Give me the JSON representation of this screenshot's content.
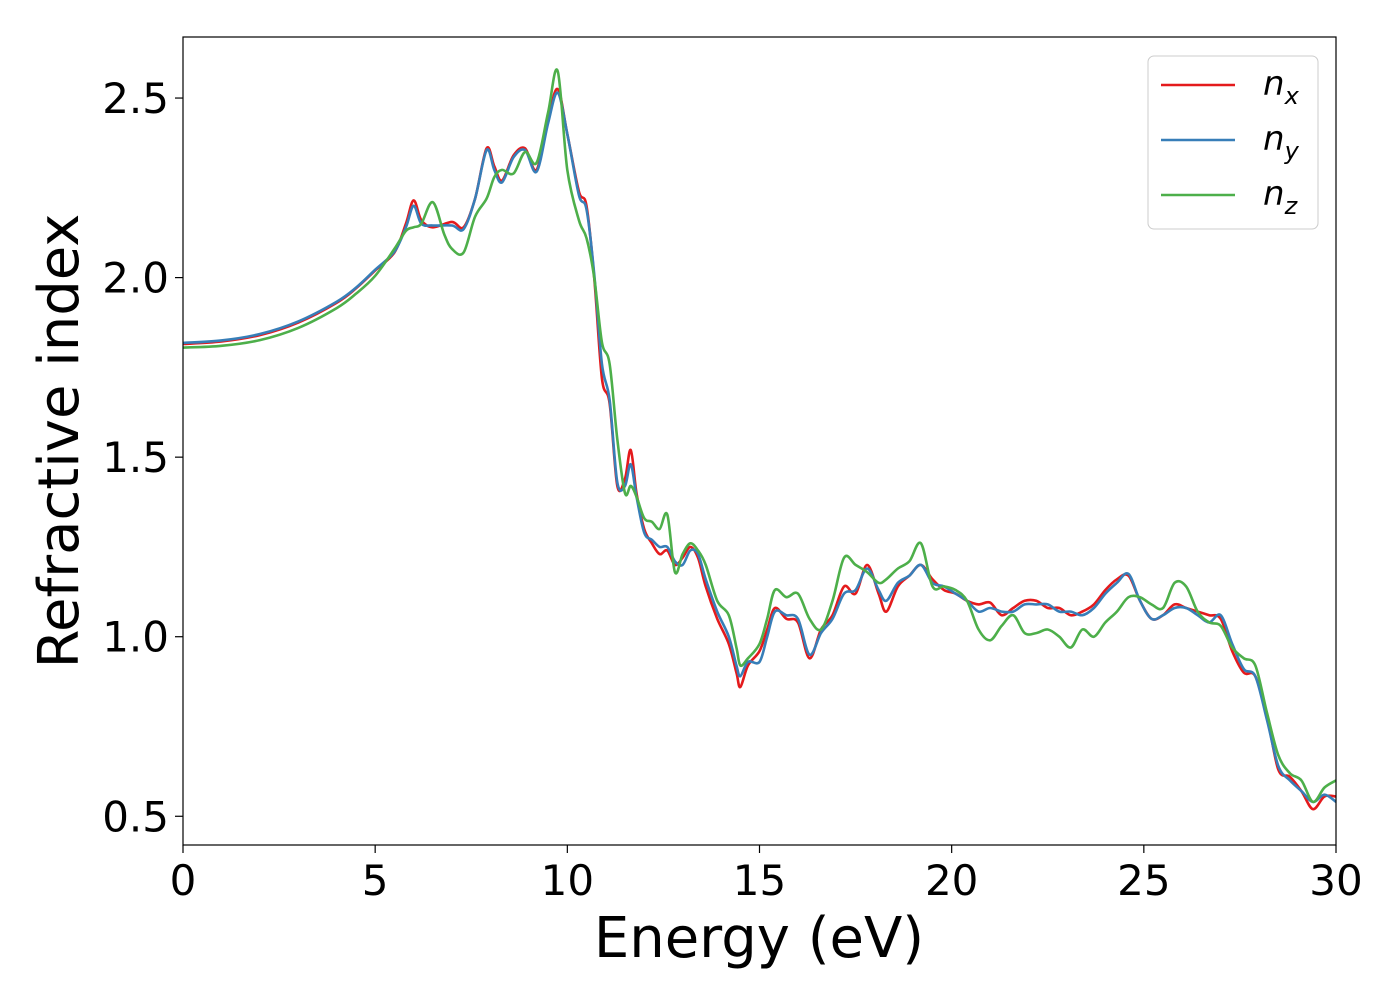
{
  "chart_data": {
    "type": "line",
    "xlabel": "Energy (eV)",
    "ylabel": "Refractive index",
    "xlim": [
      0,
      30
    ],
    "ylim": [
      0.42,
      2.67
    ],
    "xticks": [
      "0",
      "5",
      "10",
      "15",
      "20",
      "25",
      "30"
    ],
    "yticks": [
      "0.5",
      "1.0",
      "1.5",
      "2.0",
      "2.5"
    ],
    "grid": false,
    "legend_position": "top-right",
    "series": [
      {
        "name": "n_x",
        "legend_base": "n",
        "legend_sub": "x",
        "color": "#e41a1c",
        "points": [
          [
            0,
            1.815
          ],
          [
            1,
            1.822
          ],
          [
            2,
            1.84
          ],
          [
            3,
            1.875
          ],
          [
            4,
            1.93
          ],
          [
            4.5,
            1.97
          ],
          [
            5,
            2.02
          ],
          [
            5.5,
            2.07
          ],
          [
            5.8,
            2.15
          ],
          [
            6,
            2.215
          ],
          [
            6.2,
            2.16
          ],
          [
            6.5,
            2.14
          ],
          [
            7,
            2.155
          ],
          [
            7.3,
            2.14
          ],
          [
            7.6,
            2.22
          ],
          [
            7.9,
            2.36
          ],
          [
            8.1,
            2.31
          ],
          [
            8.3,
            2.27
          ],
          [
            8.6,
            2.34
          ],
          [
            8.9,
            2.36
          ],
          [
            9.2,
            2.3
          ],
          [
            9.5,
            2.44
          ],
          [
            9.75,
            2.525
          ],
          [
            10,
            2.4
          ],
          [
            10.3,
            2.24
          ],
          [
            10.5,
            2.2
          ],
          [
            10.7,
            2.0
          ],
          [
            10.9,
            1.72
          ],
          [
            11.1,
            1.65
          ],
          [
            11.3,
            1.42
          ],
          [
            11.5,
            1.44
          ],
          [
            11.65,
            1.52
          ],
          [
            11.8,
            1.4
          ],
          [
            12,
            1.3
          ],
          [
            12.2,
            1.26
          ],
          [
            12.4,
            1.23
          ],
          [
            12.6,
            1.24
          ],
          [
            12.8,
            1.2
          ],
          [
            13,
            1.22
          ],
          [
            13.2,
            1.25
          ],
          [
            13.4,
            1.22
          ],
          [
            13.6,
            1.14
          ],
          [
            13.9,
            1.05
          ],
          [
            14.2,
            0.98
          ],
          [
            14.4,
            0.9
          ],
          [
            14.5,
            0.86
          ],
          [
            14.7,
            0.92
          ],
          [
            15,
            0.96
          ],
          [
            15.2,
            1.02
          ],
          [
            15.4,
            1.08
          ],
          [
            15.7,
            1.05
          ],
          [
            16,
            1.04
          ],
          [
            16.3,
            0.94
          ],
          [
            16.6,
            1.02
          ],
          [
            16.9,
            1.06
          ],
          [
            17.2,
            1.14
          ],
          [
            17.5,
            1.12
          ],
          [
            17.8,
            1.2
          ],
          [
            18.1,
            1.12
          ],
          [
            18.3,
            1.07
          ],
          [
            18.6,
            1.14
          ],
          [
            18.9,
            1.17
          ],
          [
            19.2,
            1.2
          ],
          [
            19.5,
            1.16
          ],
          [
            19.8,
            1.13
          ],
          [
            20.1,
            1.12
          ],
          [
            20.4,
            1.1
          ],
          [
            20.7,
            1.09
          ],
          [
            21,
            1.095
          ],
          [
            21.3,
            1.06
          ],
          [
            21.6,
            1.08
          ],
          [
            21.9,
            1.1
          ],
          [
            22.2,
            1.1
          ],
          [
            22.5,
            1.08
          ],
          [
            22.8,
            1.08
          ],
          [
            23.1,
            1.06
          ],
          [
            23.4,
            1.07
          ],
          [
            23.7,
            1.09
          ],
          [
            24,
            1.13
          ],
          [
            24.3,
            1.16
          ],
          [
            24.6,
            1.17
          ],
          [
            24.9,
            1.1
          ],
          [
            25.2,
            1.05
          ],
          [
            25.5,
            1.06
          ],
          [
            25.8,
            1.09
          ],
          [
            26.1,
            1.08
          ],
          [
            26.4,
            1.07
          ],
          [
            26.7,
            1.06
          ],
          [
            27,
            1.05
          ],
          [
            27.3,
            0.96
          ],
          [
            27.6,
            0.9
          ],
          [
            27.9,
            0.89
          ],
          [
            28.2,
            0.78
          ],
          [
            28.5,
            0.63
          ],
          [
            28.8,
            0.61
          ],
          [
            29.1,
            0.57
          ],
          [
            29.4,
            0.52
          ],
          [
            29.7,
            0.555
          ],
          [
            30,
            0.555
          ]
        ]
      },
      {
        "name": "n_y",
        "legend_base": "n",
        "legend_sub": "y",
        "color": "#377eb8",
        "points": [
          [
            0,
            1.818
          ],
          [
            1,
            1.825
          ],
          [
            2,
            1.843
          ],
          [
            3,
            1.878
          ],
          [
            4,
            1.933
          ],
          [
            4.5,
            1.972
          ],
          [
            5,
            2.022
          ],
          [
            5.5,
            2.072
          ],
          [
            5.8,
            2.14
          ],
          [
            6,
            2.2
          ],
          [
            6.2,
            2.15
          ],
          [
            6.5,
            2.145
          ],
          [
            7,
            2.145
          ],
          [
            7.3,
            2.135
          ],
          [
            7.6,
            2.22
          ],
          [
            7.9,
            2.355
          ],
          [
            8.1,
            2.3
          ],
          [
            8.3,
            2.265
          ],
          [
            8.6,
            2.335
          ],
          [
            8.9,
            2.355
          ],
          [
            9.2,
            2.295
          ],
          [
            9.5,
            2.43
          ],
          [
            9.75,
            2.515
          ],
          [
            10,
            2.4
          ],
          [
            10.3,
            2.23
          ],
          [
            10.5,
            2.19
          ],
          [
            10.7,
            2.01
          ],
          [
            10.9,
            1.76
          ],
          [
            11.1,
            1.66
          ],
          [
            11.3,
            1.43
          ],
          [
            11.5,
            1.42
          ],
          [
            11.65,
            1.48
          ],
          [
            11.8,
            1.39
          ],
          [
            12,
            1.29
          ],
          [
            12.2,
            1.27
          ],
          [
            12.4,
            1.25
          ],
          [
            12.6,
            1.25
          ],
          [
            12.8,
            1.21
          ],
          [
            13,
            1.2
          ],
          [
            13.2,
            1.24
          ],
          [
            13.4,
            1.23
          ],
          [
            13.6,
            1.16
          ],
          [
            13.9,
            1.07
          ],
          [
            14.2,
            1.0
          ],
          [
            14.4,
            0.92
          ],
          [
            14.5,
            0.89
          ],
          [
            14.7,
            0.93
          ],
          [
            15,
            0.93
          ],
          [
            15.2,
            1.0
          ],
          [
            15.4,
            1.07
          ],
          [
            15.7,
            1.06
          ],
          [
            16,
            1.05
          ],
          [
            16.3,
            0.95
          ],
          [
            16.6,
            1.01
          ],
          [
            16.9,
            1.05
          ],
          [
            17.2,
            1.12
          ],
          [
            17.5,
            1.13
          ],
          [
            17.8,
            1.19
          ],
          [
            18.1,
            1.13
          ],
          [
            18.3,
            1.1
          ],
          [
            18.6,
            1.15
          ],
          [
            18.9,
            1.17
          ],
          [
            19.2,
            1.2
          ],
          [
            19.5,
            1.15
          ],
          [
            19.8,
            1.14
          ],
          [
            20.1,
            1.12
          ],
          [
            20.4,
            1.1
          ],
          [
            20.7,
            1.07
          ],
          [
            21,
            1.08
          ],
          [
            21.3,
            1.07
          ],
          [
            21.6,
            1.07
          ],
          [
            21.9,
            1.09
          ],
          [
            22.2,
            1.09
          ],
          [
            22.5,
            1.09
          ],
          [
            22.8,
            1.07
          ],
          [
            23.1,
            1.07
          ],
          [
            23.4,
            1.06
          ],
          [
            23.7,
            1.08
          ],
          [
            24,
            1.12
          ],
          [
            24.3,
            1.15
          ],
          [
            24.6,
            1.175
          ],
          [
            24.9,
            1.1
          ],
          [
            25.2,
            1.05
          ],
          [
            25.5,
            1.06
          ],
          [
            25.8,
            1.08
          ],
          [
            26.1,
            1.08
          ],
          [
            26.4,
            1.06
          ],
          [
            26.7,
            1.04
          ],
          [
            27,
            1.06
          ],
          [
            27.3,
            0.98
          ],
          [
            27.6,
            0.91
          ],
          [
            27.9,
            0.89
          ],
          [
            28.2,
            0.77
          ],
          [
            28.5,
            0.64
          ],
          [
            28.8,
            0.6
          ],
          [
            29.1,
            0.57
          ],
          [
            29.4,
            0.54
          ],
          [
            29.7,
            0.56
          ],
          [
            30,
            0.54
          ]
        ]
      },
      {
        "name": "n_z",
        "legend_base": "n",
        "legend_sub": "z",
        "color": "#4daf4a",
        "points": [
          [
            0,
            1.805
          ],
          [
            1,
            1.81
          ],
          [
            2,
            1.826
          ],
          [
            3,
            1.86
          ],
          [
            4,
            1.915
          ],
          [
            4.5,
            1.955
          ],
          [
            5,
            2.005
          ],
          [
            5.5,
            2.08
          ],
          [
            5.8,
            2.13
          ],
          [
            6,
            2.14
          ],
          [
            6.2,
            2.15
          ],
          [
            6.5,
            2.21
          ],
          [
            6.8,
            2.12
          ],
          [
            7,
            2.08
          ],
          [
            7.3,
            2.07
          ],
          [
            7.6,
            2.17
          ],
          [
            7.9,
            2.22
          ],
          [
            8.1,
            2.28
          ],
          [
            8.3,
            2.3
          ],
          [
            8.6,
            2.29
          ],
          [
            8.9,
            2.35
          ],
          [
            9.2,
            2.32
          ],
          [
            9.5,
            2.46
          ],
          [
            9.75,
            2.575
          ],
          [
            10,
            2.3
          ],
          [
            10.3,
            2.16
          ],
          [
            10.5,
            2.11
          ],
          [
            10.7,
            2.0
          ],
          [
            10.9,
            1.82
          ],
          [
            11.1,
            1.76
          ],
          [
            11.3,
            1.55
          ],
          [
            11.5,
            1.4
          ],
          [
            11.65,
            1.42
          ],
          [
            11.8,
            1.39
          ],
          [
            12,
            1.33
          ],
          [
            12.2,
            1.32
          ],
          [
            12.4,
            1.3
          ],
          [
            12.6,
            1.34
          ],
          [
            12.8,
            1.18
          ],
          [
            13,
            1.23
          ],
          [
            13.2,
            1.26
          ],
          [
            13.4,
            1.24
          ],
          [
            13.6,
            1.2
          ],
          [
            13.9,
            1.1
          ],
          [
            14.2,
            1.06
          ],
          [
            14.4,
            0.97
          ],
          [
            14.5,
            0.92
          ],
          [
            14.7,
            0.94
          ],
          [
            15,
            0.98
          ],
          [
            15.2,
            1.05
          ],
          [
            15.4,
            1.13
          ],
          [
            15.7,
            1.11
          ],
          [
            16,
            1.12
          ],
          [
            16.3,
            1.05
          ],
          [
            16.6,
            1.02
          ],
          [
            16.9,
            1.1
          ],
          [
            17.2,
            1.22
          ],
          [
            17.5,
            1.2
          ],
          [
            17.8,
            1.18
          ],
          [
            18.1,
            1.15
          ],
          [
            18.3,
            1.16
          ],
          [
            18.6,
            1.19
          ],
          [
            18.9,
            1.21
          ],
          [
            19.2,
            1.26
          ],
          [
            19.5,
            1.14
          ],
          [
            19.8,
            1.14
          ],
          [
            20.1,
            1.13
          ],
          [
            20.4,
            1.1
          ],
          [
            20.7,
            1.02
          ],
          [
            21,
            0.99
          ],
          [
            21.3,
            1.03
          ],
          [
            21.6,
            1.06
          ],
          [
            21.9,
            1.01
          ],
          [
            22.2,
            1.01
          ],
          [
            22.5,
            1.02
          ],
          [
            22.8,
            1.0
          ],
          [
            23.1,
            0.97
          ],
          [
            23.4,
            1.02
          ],
          [
            23.7,
            1.0
          ],
          [
            24,
            1.04
          ],
          [
            24.3,
            1.07
          ],
          [
            24.6,
            1.11
          ],
          [
            24.9,
            1.11
          ],
          [
            25.2,
            1.09
          ],
          [
            25.5,
            1.08
          ],
          [
            25.8,
            1.15
          ],
          [
            26.1,
            1.14
          ],
          [
            26.4,
            1.07
          ],
          [
            26.7,
            1.04
          ],
          [
            27,
            1.03
          ],
          [
            27.3,
            0.97
          ],
          [
            27.6,
            0.94
          ],
          [
            27.9,
            0.92
          ],
          [
            28.2,
            0.79
          ],
          [
            28.5,
            0.67
          ],
          [
            28.8,
            0.62
          ],
          [
            29.1,
            0.6
          ],
          [
            29.4,
            0.54
          ],
          [
            29.7,
            0.58
          ],
          [
            30,
            0.6
          ]
        ]
      }
    ]
  }
}
